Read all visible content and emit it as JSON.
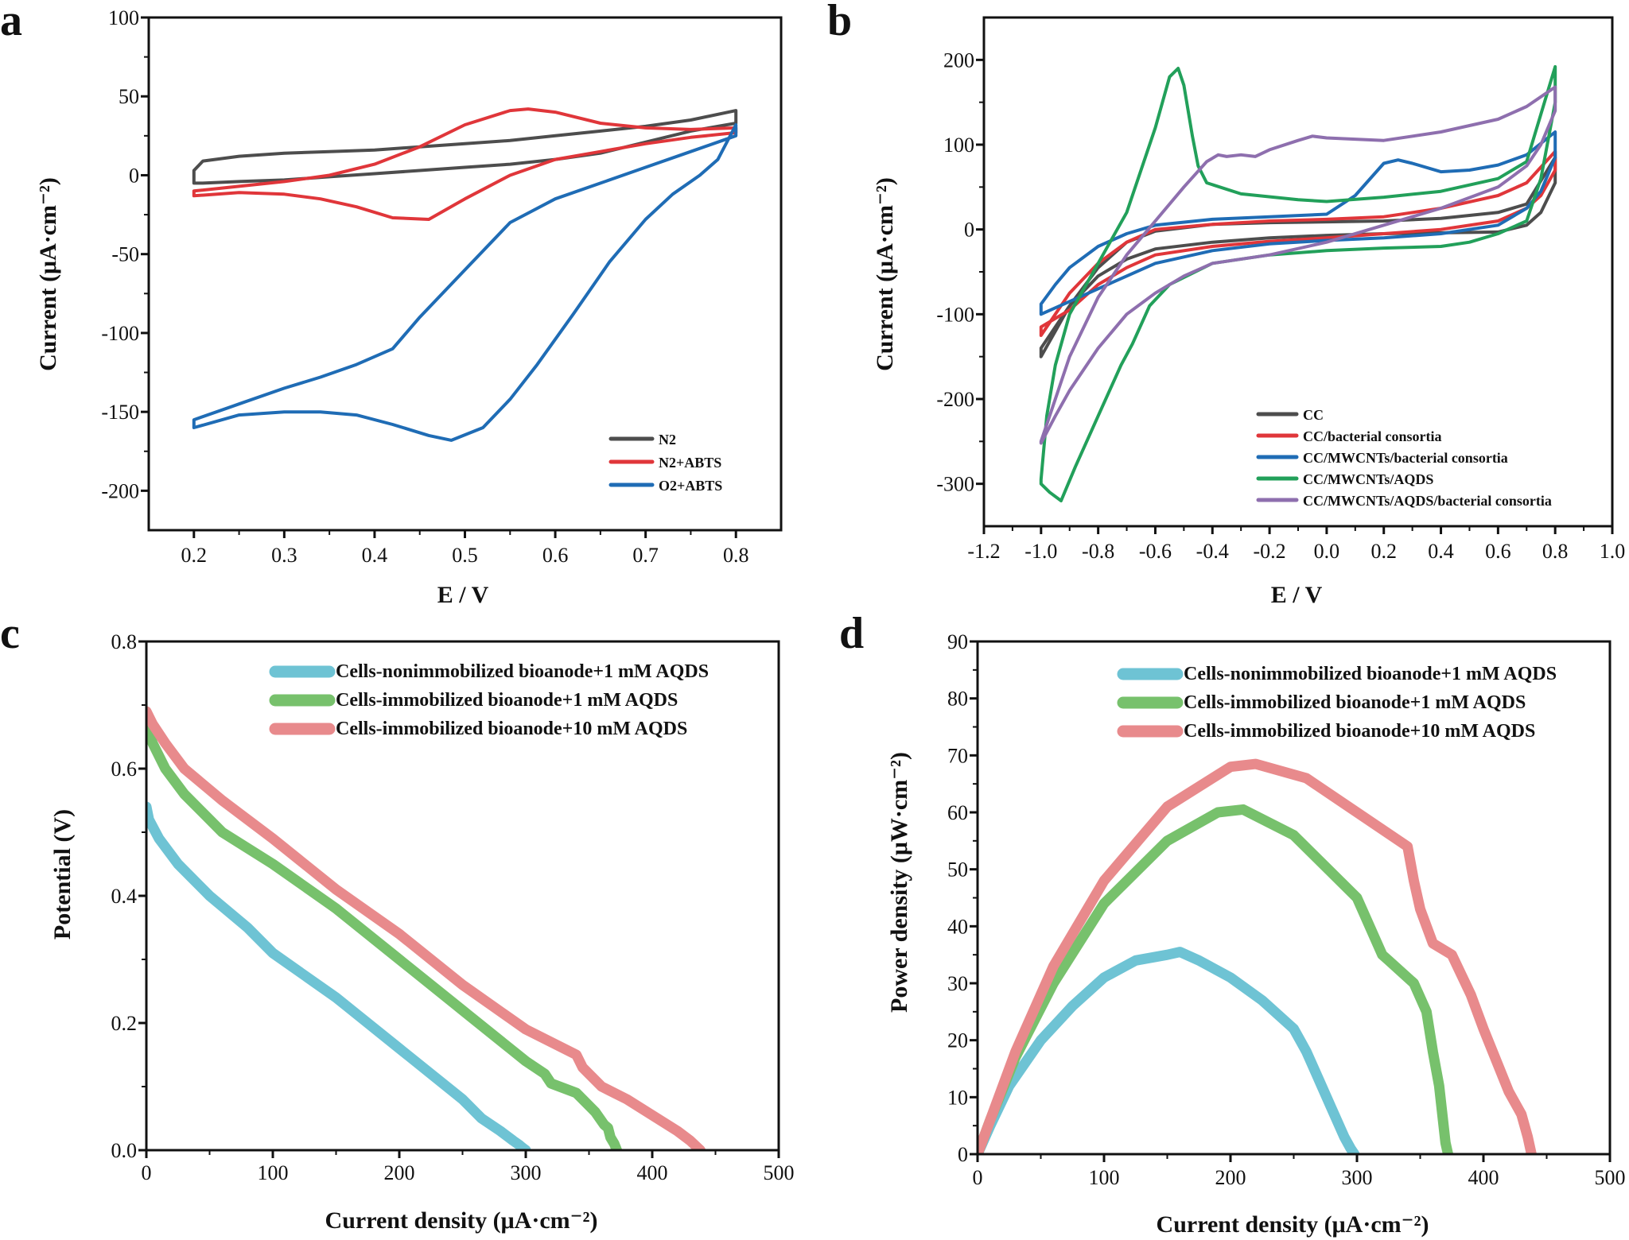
{
  "figure": {
    "panels": [
      {
        "letter": "a",
        "xlabel": "E / V",
        "ylabel": "Current (μA·cm⁻²)"
      },
      {
        "letter": "b",
        "xlabel": "E / V",
        "ylabel": "Current (μA·cm⁻²)"
      },
      {
        "letter": "c",
        "xlabel": "Current density (μA·cm⁻²)",
        "ylabel": "Potential (V)"
      },
      {
        "letter": "d",
        "xlabel": "Current density (μA·cm⁻²)",
        "ylabel": "Power density (μW·cm⁻²)"
      }
    ]
  },
  "chart_data": [
    {
      "id": "a",
      "type": "line",
      "title": "",
      "xlabel": "E / V",
      "ylabel": "Current (μA·cm⁻²)",
      "xlim": [
        0.15,
        0.85
      ],
      "ylim": [
        -225,
        100
      ],
      "xticks": [
        0.2,
        0.3,
        0.4,
        0.5,
        0.6,
        0.7,
        0.8
      ],
      "yticks": [
        100,
        50,
        0,
        -50,
        -100,
        -150,
        -200
      ],
      "legend_position": "bottom-right",
      "series": [
        {
          "name": "N2",
          "color": "#4d4d4d",
          "closed": true,
          "x": [
            0.2,
            0.2,
            0.21,
            0.25,
            0.3,
            0.35,
            0.4,
            0.45,
            0.5,
            0.55,
            0.6,
            0.65,
            0.7,
            0.75,
            0.8,
            0.8,
            0.75,
            0.7,
            0.65,
            0.6,
            0.55,
            0.5,
            0.45,
            0.4,
            0.35,
            0.3,
            0.25,
            0.21
          ],
          "y": [
            -5,
            3,
            9,
            12,
            14,
            15,
            16,
            18,
            20,
            22,
            25,
            28,
            31,
            35,
            41,
            33,
            28,
            21,
            14,
            10,
            7,
            5,
            3,
            1,
            -1,
            -3,
            -4,
            -5
          ]
        },
        {
          "name": "N2+ABTS",
          "color": "#e0363a",
          "closed": true,
          "x": [
            0.2,
            0.25,
            0.3,
            0.35,
            0.4,
            0.45,
            0.5,
            0.55,
            0.57,
            0.6,
            0.65,
            0.7,
            0.75,
            0.8,
            0.8,
            0.75,
            0.7,
            0.65,
            0.6,
            0.55,
            0.5,
            0.46,
            0.42,
            0.38,
            0.34,
            0.3,
            0.25,
            0.2
          ],
          "y": [
            -10,
            -7,
            -4,
            0,
            7,
            18,
            32,
            41,
            42,
            40,
            33,
            30,
            29,
            30,
            27,
            24,
            20,
            15,
            10,
            0,
            -15,
            -28,
            -27,
            -20,
            -15,
            -12,
            -11,
            -13
          ]
        },
        {
          "name": "O2+ABTS",
          "color": "#1f6cb5",
          "closed": true,
          "x": [
            0.2,
            0.25,
            0.3,
            0.34,
            0.38,
            0.42,
            0.46,
            0.485,
            0.52,
            0.55,
            0.58,
            0.62,
            0.66,
            0.7,
            0.73,
            0.76,
            0.78,
            0.8,
            0.8,
            0.75,
            0.7,
            0.65,
            0.6,
            0.55,
            0.5,
            0.45,
            0.42,
            0.38,
            0.34,
            0.3,
            0.25,
            0.2
          ],
          "y": [
            -160,
            -152,
            -150,
            -150,
            -152,
            -158,
            -165,
            -168,
            -160,
            -142,
            -120,
            -88,
            -55,
            -28,
            -12,
            0,
            10,
            32,
            25,
            15,
            5,
            -5,
            -15,
            -30,
            -60,
            -90,
            -110,
            -120,
            -128,
            -135,
            -145,
            -155
          ]
        }
      ]
    },
    {
      "id": "b",
      "type": "line",
      "title": "",
      "xlabel": "E / V",
      "ylabel": "Current (μA·cm⁻²)",
      "xlim": [
        -1.2,
        1.0
      ],
      "ylim": [
        -350,
        250
      ],
      "xticks": [
        -1.2,
        -1.0,
        -0.8,
        -0.6,
        -0.4,
        -0.2,
        0.0,
        0.2,
        0.4,
        0.6,
        0.8,
        1.0
      ],
      "yticks": [
        200,
        100,
        0,
        -100,
        -200,
        -300
      ],
      "legend_position": "bottom-right",
      "series": [
        {
          "name": "CC",
          "color": "#4d4d4d",
          "closed": true,
          "x": [
            -1.0,
            -0.95,
            -0.9,
            -0.8,
            -0.7,
            -0.6,
            -0.4,
            -0.2,
            0.0,
            0.2,
            0.4,
            0.6,
            0.7,
            0.8,
            0.8,
            0.75,
            0.7,
            0.6,
            0.4,
            0.2,
            0.0,
            -0.2,
            -0.4,
            -0.6,
            -0.7,
            -0.8,
            -0.9,
            -1.0
          ],
          "y": [
            -150,
            -120,
            -90,
            -45,
            -15,
            -2,
            6,
            8,
            9,
            10,
            13,
            20,
            30,
            85,
            55,
            20,
            5,
            -3,
            -4,
            -5,
            -7,
            -10,
            -15,
            -23,
            -35,
            -55,
            -90,
            -140
          ]
        },
        {
          "name": "CC/bacterial consortia",
          "color": "#e0363a",
          "closed": true,
          "x": [
            -1.0,
            -0.95,
            -0.9,
            -0.8,
            -0.7,
            -0.6,
            -0.4,
            -0.2,
            0.0,
            0.2,
            0.4,
            0.6,
            0.7,
            0.8,
            0.8,
            0.75,
            0.7,
            0.6,
            0.4,
            0.2,
            0.0,
            -0.2,
            -0.4,
            -0.6,
            -0.7,
            -0.8,
            -0.9,
            -1.0
          ],
          "y": [
            -125,
            -100,
            -75,
            -40,
            -15,
            0,
            6,
            10,
            12,
            15,
            25,
            40,
            55,
            92,
            70,
            40,
            25,
            10,
            0,
            -5,
            -10,
            -14,
            -20,
            -30,
            -45,
            -65,
            -95,
            -115
          ]
        },
        {
          "name": "CC/MWCNTs/bacterial consortia",
          "color": "#1f6cb5",
          "closed": true,
          "x": [
            -1.0,
            -0.95,
            -0.9,
            -0.8,
            -0.7,
            -0.6,
            -0.4,
            -0.2,
            0.0,
            0.1,
            0.2,
            0.25,
            0.3,
            0.4,
            0.5,
            0.6,
            0.7,
            0.8,
            0.8,
            0.75,
            0.7,
            0.6,
            0.4,
            0.2,
            0.0,
            -0.2,
            -0.4,
            -0.6,
            -0.7,
            -0.8,
            -0.9,
            -1.0
          ],
          "y": [
            -88,
            -65,
            -45,
            -20,
            -5,
            5,
            12,
            15,
            18,
            40,
            78,
            82,
            78,
            68,
            70,
            76,
            88,
            115,
            85,
            45,
            25,
            5,
            -5,
            -10,
            -13,
            -17,
            -25,
            -40,
            -55,
            -70,
            -85,
            -100
          ]
        },
        {
          "name": "CC/MWCNTs/AQDS",
          "color": "#22a05a",
          "closed": true,
          "x": [
            -1.0,
            -0.98,
            -0.95,
            -0.9,
            -0.8,
            -0.7,
            -0.6,
            -0.55,
            -0.52,
            -0.5,
            -0.47,
            -0.45,
            -0.42,
            -0.3,
            -0.1,
            0.0,
            0.2,
            0.4,
            0.6,
            0.7,
            0.8,
            0.8,
            0.75,
            0.7,
            0.6,
            0.5,
            0.4,
            0.2,
            0.0,
            -0.2,
            -0.4,
            -0.55,
            -0.62,
            -0.68,
            -0.72,
            -0.8,
            -0.88,
            -0.93,
            -0.97,
            -1.0
          ],
          "y": [
            -295,
            -220,
            -160,
            -100,
            -40,
            20,
            120,
            180,
            190,
            170,
            110,
            75,
            55,
            42,
            35,
            33,
            38,
            45,
            60,
            80,
            192,
            150,
            60,
            10,
            -5,
            -15,
            -20,
            -22,
            -25,
            -30,
            -40,
            -65,
            -90,
            -135,
            -160,
            -220,
            -280,
            -320,
            -310,
            -300
          ]
        },
        {
          "name": "CC/MWCNTs/AQDS/bacterial consortia",
          "color": "#8e6fae",
          "closed": true,
          "x": [
            -1.0,
            -0.95,
            -0.9,
            -0.8,
            -0.7,
            -0.6,
            -0.5,
            -0.42,
            -0.38,
            -0.35,
            -0.3,
            -0.25,
            -0.2,
            -0.1,
            -0.05,
            0.0,
            0.2,
            0.4,
            0.6,
            0.7,
            0.8,
            0.8,
            0.75,
            0.7,
            0.6,
            0.4,
            0.2,
            0.0,
            -0.2,
            -0.4,
            -0.5,
            -0.6,
            -0.7,
            -0.8,
            -0.9,
            -0.95,
            -1.0
          ],
          "y": [
            -250,
            -200,
            -150,
            -80,
            -30,
            10,
            50,
            80,
            88,
            86,
            88,
            86,
            94,
            105,
            110,
            108,
            105,
            115,
            130,
            145,
            168,
            140,
            100,
            75,
            50,
            25,
            5,
            -15,
            -30,
            -40,
            -55,
            -75,
            -100,
            -140,
            -190,
            -220,
            -252
          ]
        }
      ]
    },
    {
      "id": "c",
      "type": "line",
      "title": "",
      "xlabel": "Current density (μA·cm⁻²)",
      "ylabel": "Potential (V)",
      "xlim": [
        0,
        500
      ],
      "ylim": [
        0,
        0.8
      ],
      "xticks": [
        0,
        100,
        200,
        300,
        400,
        500
      ],
      "yticks": [
        0.0,
        0.2,
        0.4,
        0.6,
        0.8
      ],
      "legend_position": "top-right",
      "series": [
        {
          "name": "Cells-nonimmobilized bioanode+1 mM AQDS",
          "color": "#6ec3d4",
          "x": [
            0,
            2,
            10,
            25,
            50,
            80,
            100,
            150,
            200,
            250,
            265,
            280,
            290,
            295,
            298,
            300
          ],
          "y": [
            0.54,
            0.52,
            0.49,
            0.45,
            0.4,
            0.35,
            0.31,
            0.24,
            0.16,
            0.08,
            0.05,
            0.03,
            0.015,
            0.008,
            0.003,
            0.0
          ]
        },
        {
          "name": "Cells-immobilized bioanode+1 mM AQDS",
          "color": "#77c16c",
          "x": [
            0,
            5,
            15,
            30,
            60,
            100,
            150,
            200,
            250,
            300,
            315,
            320,
            340,
            355,
            362,
            365,
            367,
            370,
            372
          ],
          "y": [
            0.67,
            0.64,
            0.6,
            0.56,
            0.5,
            0.45,
            0.38,
            0.3,
            0.22,
            0.14,
            0.12,
            0.105,
            0.09,
            0.06,
            0.04,
            0.035,
            0.02,
            0.01,
            0.0
          ]
        },
        {
          "name": "Cells-immobilized bioanode+10 mM AQDS",
          "color": "#e88a8c",
          "x": [
            0,
            5,
            15,
            30,
            60,
            100,
            150,
            200,
            250,
            300,
            340,
            345,
            360,
            380,
            400,
            420,
            430,
            438
          ],
          "y": [
            0.69,
            0.67,
            0.64,
            0.6,
            0.55,
            0.49,
            0.41,
            0.34,
            0.26,
            0.19,
            0.15,
            0.13,
            0.1,
            0.08,
            0.055,
            0.03,
            0.015,
            0.0
          ]
        }
      ]
    },
    {
      "id": "d",
      "type": "line",
      "title": "",
      "xlabel": "Current density (μA·cm⁻²)",
      "ylabel": "Power density (μW·cm⁻²)",
      "xlim": [
        0,
        500
      ],
      "ylim": [
        0,
        90
      ],
      "xticks": [
        0,
        100,
        200,
        300,
        400,
        500
      ],
      "yticks": [
        0,
        10,
        20,
        30,
        40,
        50,
        60,
        70,
        80,
        90
      ],
      "legend_position": "top-right",
      "series": [
        {
          "name": "Cells-nonimmobilized bioanode+1 mM AQDS",
          "color": "#6ec3d4",
          "x": [
            0,
            10,
            25,
            50,
            75,
            100,
            125,
            150,
            160,
            175,
            200,
            225,
            250,
            255,
            260,
            270,
            280,
            290,
            295,
            298
          ],
          "y": [
            0,
            5,
            12,
            20,
            26,
            31,
            34,
            35,
            35.5,
            34,
            31,
            27,
            22,
            20,
            18,
            13,
            8,
            3,
            1,
            0
          ]
        },
        {
          "name": "Cells-immobilized bioanode+1 mM AQDS",
          "color": "#77c16c",
          "x": [
            0,
            10,
            30,
            60,
            100,
            150,
            190,
            210,
            250,
            300,
            320,
            325,
            345,
            355,
            360,
            365,
            368,
            370,
            372
          ],
          "y": [
            0,
            6,
            17,
            30,
            44,
            55,
            60,
            60.5,
            56,
            45,
            35,
            34,
            30,
            25,
            18,
            12,
            6,
            2,
            0
          ]
        },
        {
          "name": "Cells-immobilized bioanode+10 mM AQDS",
          "color": "#e88a8c",
          "x": [
            0,
            10,
            30,
            60,
            100,
            150,
            200,
            220,
            260,
            300,
            340,
            345,
            350,
            360,
            375,
            390,
            400,
            420,
            430,
            435,
            438
          ],
          "y": [
            0,
            6,
            18,
            33,
            48,
            61,
            68,
            68.5,
            66,
            60,
            54,
            48,
            43,
            37,
            35,
            28,
            22,
            11,
            7,
            3,
            0
          ]
        }
      ]
    }
  ]
}
